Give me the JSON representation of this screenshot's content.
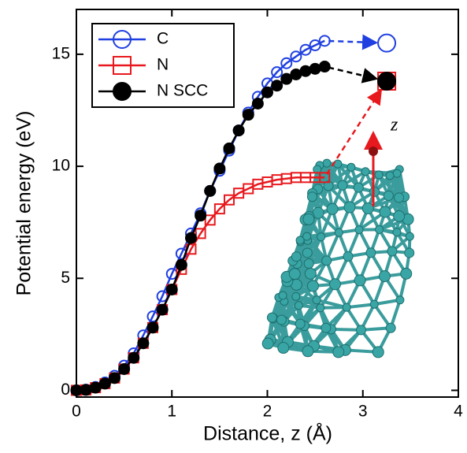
{
  "chart_data": {
    "type": "line",
    "xlabel": "Distance, z (Å)",
    "ylabel": "Potential energy (eV)",
    "annotation": "z",
    "x": [
      0,
      0.1,
      0.2,
      0.3,
      0.4,
      0.5,
      0.6,
      0.7,
      0.8,
      0.9,
      1.0,
      1.1,
      1.2,
      1.3,
      1.4,
      1.5,
      1.6,
      1.7,
      1.8,
      1.9,
      2.0,
      2.1,
      2.2,
      2.3,
      2.4,
      2.5,
      2.6
    ],
    "series": [
      {
        "name": "C",
        "color": "#1f3fe0",
        "marker": "open-circle",
        "values": [
          0,
          0.03,
          0.15,
          0.35,
          0.65,
          1.1,
          1.65,
          2.45,
          3.3,
          4.2,
          5.2,
          6.1,
          7.0,
          7.9,
          8.9,
          9.8,
          10.7,
          11.6,
          12.4,
          13.1,
          13.7,
          14.2,
          14.6,
          14.9,
          15.2,
          15.4,
          15.6
        ],
        "final": {
          "x": 3.25,
          "y": 15.5
        }
      },
      {
        "name": "N",
        "color": "#e8191e",
        "marker": "open-square",
        "values": [
          0,
          0.02,
          0.12,
          0.3,
          0.55,
          0.95,
          1.45,
          2.1,
          2.8,
          3.6,
          4.5,
          5.4,
          6.3,
          7.0,
          7.6,
          8.1,
          8.5,
          8.8,
          9.0,
          9.2,
          9.3,
          9.4,
          9.45,
          9.5,
          9.5,
          9.5,
          9.5
        ],
        "final": {
          "x": 3.25,
          "y": 13.8
        }
      },
      {
        "name": "N SCC",
        "color": "#000000",
        "marker": "filled-circle",
        "values": [
          0,
          0.02,
          0.12,
          0.3,
          0.55,
          0.95,
          1.45,
          2.1,
          2.8,
          3.6,
          4.5,
          5.6,
          6.8,
          7.8,
          8.9,
          9.9,
          10.8,
          11.6,
          12.3,
          12.8,
          13.3,
          13.6,
          13.9,
          14.1,
          14.25,
          14.35,
          14.45
        ],
        "final": {
          "x": 3.25,
          "y": 13.8
        }
      }
    ],
    "xlim": [
      0,
      4
    ],
    "ylim": [
      -0.3,
      17
    ],
    "xticks": [
      0,
      1,
      2,
      3,
      4
    ],
    "yticks": [
      0,
      5,
      10,
      15
    ],
    "legend": "upper left"
  }
}
